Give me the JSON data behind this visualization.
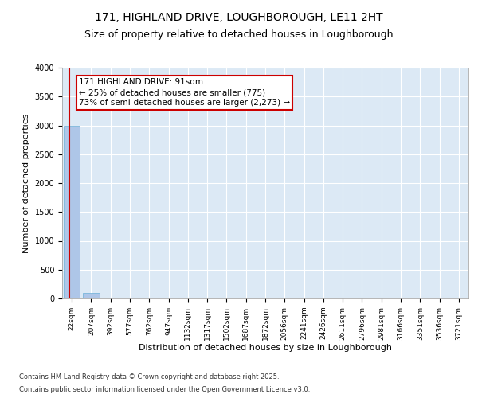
{
  "title_line1": "171, HIGHLAND DRIVE, LOUGHBOROUGH, LE11 2HT",
  "title_line2": "Size of property relative to detached houses in Loughborough",
  "xlabel": "Distribution of detached houses by size in Loughborough",
  "ylabel": "Number of detached properties",
  "categories": [
    "22sqm",
    "207sqm",
    "392sqm",
    "577sqm",
    "762sqm",
    "947sqm",
    "1132sqm",
    "1317sqm",
    "1502sqm",
    "1687sqm",
    "1872sqm",
    "2056sqm",
    "2241sqm",
    "2426sqm",
    "2611sqm",
    "2796sqm",
    "2981sqm",
    "3166sqm",
    "3351sqm",
    "3536sqm",
    "3721sqm"
  ],
  "values": [
    3000,
    100,
    0,
    0,
    0,
    0,
    0,
    0,
    0,
    0,
    0,
    0,
    0,
    0,
    0,
    0,
    0,
    0,
    0,
    0,
    0
  ],
  "bar_color": "#aec6e8",
  "bar_edge_color": "#6aaed6",
  "highlight_color": "#cc0000",
  "annotation_line1": "171 HIGHLAND DRIVE: 91sqm",
  "annotation_line2": "← 25% of detached houses are smaller (775)",
  "annotation_line3": "73% of semi-detached houses are larger (2,273) →",
  "annotation_box_color": "#cc0000",
  "ylim": [
    0,
    4000
  ],
  "yticks": [
    0,
    500,
    1000,
    1500,
    2000,
    2500,
    3000,
    3500,
    4000
  ],
  "background_color": "#dce9f5",
  "grid_color": "#ffffff",
  "footer_line1": "Contains HM Land Registry data © Crown copyright and database right 2025.",
  "footer_line2": "Contains public sector information licensed under the Open Government Licence v3.0.",
  "title_fontsize": 10,
  "subtitle_fontsize": 9,
  "axis_label_fontsize": 8,
  "tick_fontsize": 6.5,
  "annotation_fontsize": 7.5
}
